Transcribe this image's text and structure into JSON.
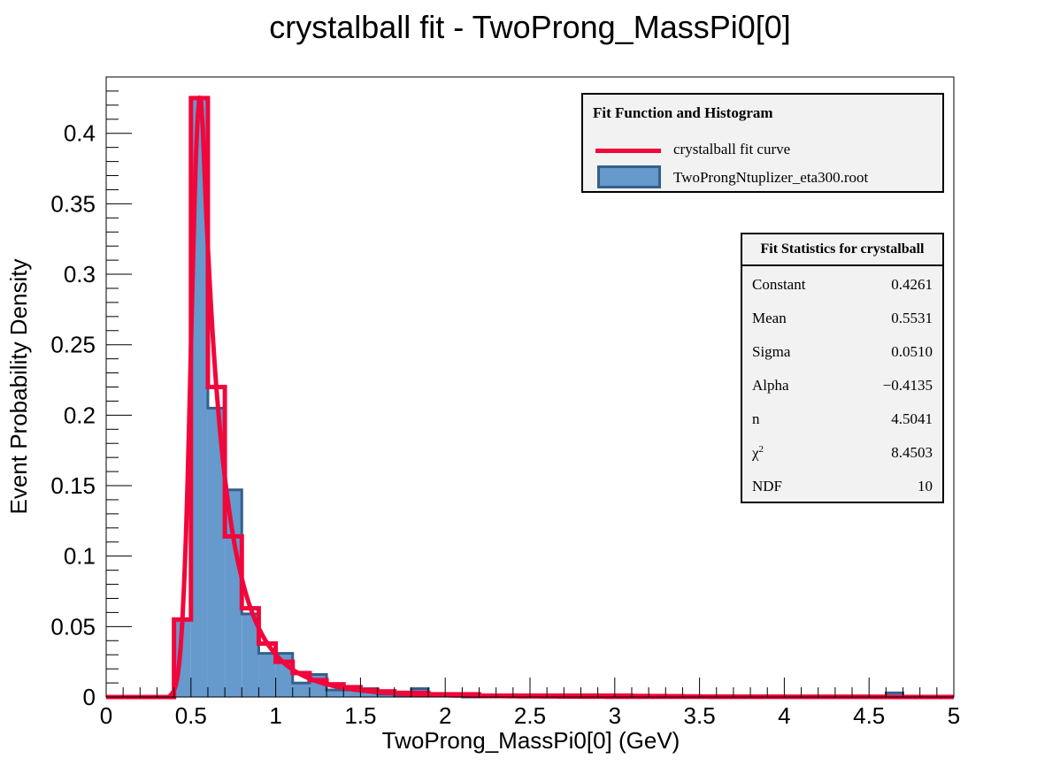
{
  "chart_data": {
    "type": "bar",
    "title": "crystalball fit - TwoProng_MassPi0[0]",
    "xlabel": "TwoProng_MassPi0[0] (GeV)",
    "ylabel": "Event Probability Density",
    "xlim": [
      0,
      5
    ],
    "ylim": [
      0,
      0.44
    ],
    "x_ticks": [
      "0",
      "0.5",
      "1",
      "1.5",
      "2",
      "2.5",
      "3",
      "3.5",
      "4",
      "4.5",
      "5"
    ],
    "y_ticks": [
      "0",
      "0.05",
      "0.1",
      "0.15",
      "0.2",
      "0.25",
      "0.3",
      "0.35",
      "0.4"
    ],
    "bin_edges": [
      0.0,
      0.1,
      0.2,
      0.3,
      0.4,
      0.5,
      0.6,
      0.7,
      0.8,
      0.9,
      1.0,
      1.1,
      1.2,
      1.3,
      1.4,
      1.5,
      1.6,
      1.7,
      1.8,
      1.9,
      2.0,
      2.1,
      2.2,
      2.3,
      2.4,
      2.5,
      2.6,
      2.7,
      2.8,
      2.9,
      3.0,
      3.1,
      3.2,
      3.3,
      3.4,
      3.5,
      3.6,
      3.7,
      3.8,
      3.9,
      4.0,
      4.1,
      4.2,
      4.3,
      4.4,
      4.5,
      4.6,
      4.7,
      4.8,
      4.9,
      5.0
    ],
    "series": [
      {
        "name": "TwoProngNtuplizer_eta300.root",
        "kind": "histogram",
        "color": "#6699cc",
        "edge_color": "#33608c",
        "values": [
          0,
          0,
          0,
          0,
          0.055,
          0.425,
          0.205,
          0.147,
          0.059,
          0.031,
          0.031,
          0.01,
          0.016,
          0.005,
          0.005,
          0.006,
          0.002,
          0.001,
          0.006,
          0.002,
          0.002,
          0,
          0,
          0,
          0,
          0,
          0,
          0,
          0,
          0,
          0,
          0,
          0,
          0,
          0,
          0,
          0,
          0,
          0,
          0,
          0,
          0,
          0,
          0,
          0,
          0,
          0.003,
          0,
          0,
          0
        ]
      },
      {
        "name": "crystalball fit curve",
        "kind": "fit-step",
        "color": "#f0073b",
        "values": [
          0,
          0,
          0,
          0,
          0.055,
          0.425,
          0.22,
          0.114,
          0.063,
          0.038,
          0.025,
          0.017,
          0.012,
          0.009,
          0.007,
          0.005,
          0.004,
          0.003,
          0.003,
          0.002,
          0.002,
          0.002,
          0.001,
          0.001,
          0.001,
          0.001,
          0.001,
          0.001,
          0.001,
          0.001,
          0.001,
          0.0008,
          0.0007,
          0.0006,
          0.0005,
          0.0004,
          0.0004,
          0.0003,
          0.0003,
          0.0003,
          0.0002,
          0.0002,
          0.0002,
          0.0002,
          0.0002,
          0.0002,
          0.0001,
          0.0001,
          0.0001,
          0.0001
        ]
      }
    ],
    "fit_params": {
      "Constant": 0.4261,
      "Mean": 0.5531,
      "Sigma": 0.051,
      "Alpha": -0.4135,
      "n": 4.5041
    }
  },
  "legend": {
    "header": "Fit Function and Histogram",
    "fit_label": "crystalball fit curve",
    "hist_label": "TwoProngNtuplizer_eta300.root",
    "placement": "top-right"
  },
  "stats": {
    "header": "Fit Statistics for crystalball",
    "rows": [
      {
        "key": "Constant",
        "value": "0.4261"
      },
      {
        "key": "Mean",
        "value": "0.5531"
      },
      {
        "key": "Sigma",
        "value": "0.0510"
      },
      {
        "key": "Alpha",
        "value": "−0.4135"
      },
      {
        "key": "n",
        "value": "4.5041"
      },
      {
        "key": "χ",
        "sup": "2",
        "value": "8.4503"
      },
      {
        "key": "NDF",
        "value": "10"
      }
    ]
  }
}
